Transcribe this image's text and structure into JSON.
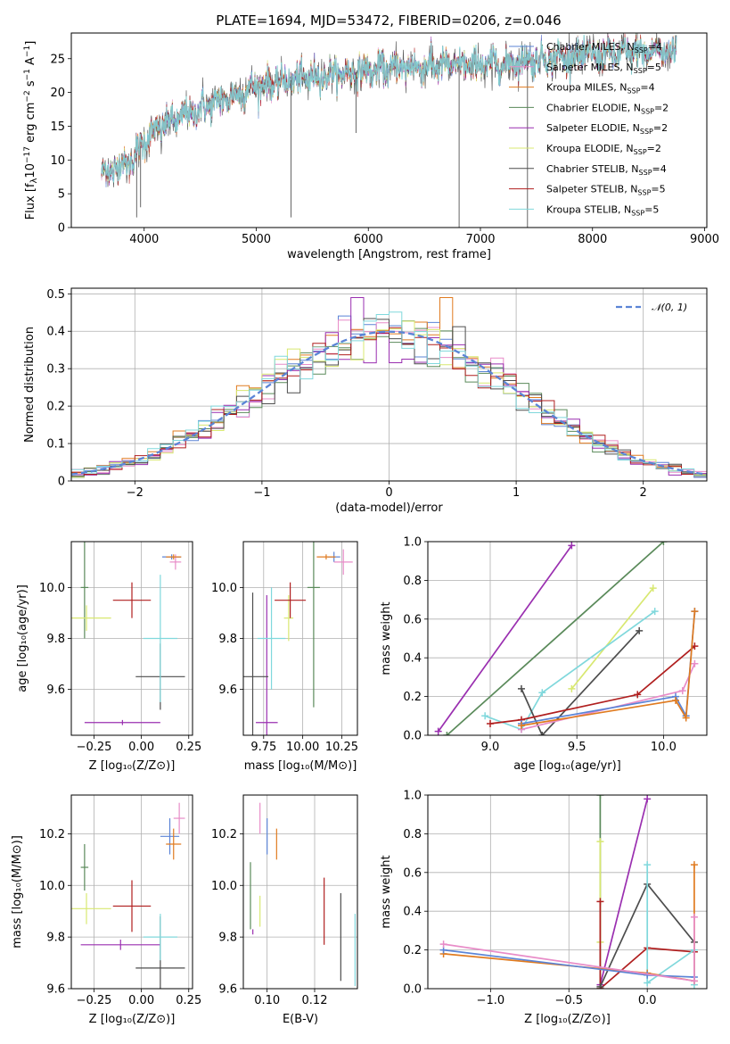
{
  "title": "PLATE=1694, MJD=53472, FIBERID=0206, z=0.046",
  "colors": {
    "Chabrier MILES": "#5b84d6",
    "Salpeter MILES": "#e88cc8",
    "Kroupa MILES": "#e07b20",
    "Chabrier ELODIE": "#5a8a5a",
    "Salpeter ELODIE": "#9a2fb0",
    "Kroupa ELODIE": "#d8e870",
    "Chabrier STELIB": "#4d4d4d",
    "Salpeter STELIB": "#b01f1f",
    "Kroupa STELIB": "#80d8dc"
  },
  "chart_data": [
    {
      "id": "spectrum",
      "type": "line",
      "title": "PLATE=1694, MJD=53472, FIBERID=0206, z=0.046",
      "xlabel": "wavelength [Angstrom, rest frame]",
      "ylabel": "Flux [f_λ10^-17 erg cm^-2 s^-1 A^-1]",
      "xlim": [
        3350,
        9020
      ],
      "ylim": [
        0,
        28.8
      ],
      "xticks": [
        4000,
        5000,
        6000,
        7000,
        8000,
        9000
      ],
      "yticks": [
        0,
        5,
        10,
        15,
        20,
        25
      ],
      "grid": false,
      "legend_position": "top-right",
      "data_range": [
        3620,
        8750
      ],
      "legend": [
        {
          "label": "Chabrier MILES, N_SSP=4",
          "color_key": "Chabrier MILES"
        },
        {
          "label": "Salpeter MILES, N_SSP=5",
          "color_key": "Salpeter MILES"
        },
        {
          "label": "Kroupa MILES, N_SSP=4",
          "color_key": "Kroupa MILES"
        },
        {
          "label": "Chabrier ELODIE, N_SSP=2",
          "color_key": "Chabrier ELODIE"
        },
        {
          "label": "Salpeter ELODIE, N_SSP=2",
          "color_key": "Salpeter ELODIE"
        },
        {
          "label": "Kroupa ELODIE, N_SSP=2",
          "color_key": "Kroupa ELODIE"
        },
        {
          "label": "Chabrier STELIB, N_SSP=4",
          "color_key": "Chabrier STELIB"
        },
        {
          "label": "Salpeter STELIB, N_SSP=5",
          "color_key": "Salpeter STELIB"
        },
        {
          "label": "Kroupa STELIB, N_SSP=5",
          "color_key": "Kroupa STELIB"
        }
      ],
      "continuum": [
        [
          3620,
          8
        ],
        [
          3900,
          10
        ],
        [
          4000,
          13
        ],
        [
          4200,
          15.5
        ],
        [
          4500,
          17.5
        ],
        [
          4800,
          19.5
        ],
        [
          5000,
          21
        ],
        [
          5300,
          21.8
        ],
        [
          5600,
          22.5
        ],
        [
          6000,
          23.2
        ],
        [
          6400,
          23.8
        ],
        [
          6800,
          24
        ],
        [
          7200,
          24.2
        ],
        [
          7500,
          25
        ],
        [
          8000,
          25.5
        ],
        [
          8500,
          26
        ],
        [
          8750,
          26.2
        ]
      ],
      "absorption_lines": [
        {
          "x": 3933,
          "y": 1.5
        },
        {
          "x": 3968,
          "y": 3.0
        },
        {
          "x": 5310,
          "y": 1.5
        },
        {
          "x": 5890,
          "y": 14.0
        },
        {
          "x": 6810,
          "y": 0
        },
        {
          "x": 7420,
          "y": 0
        }
      ]
    },
    {
      "id": "residual-histogram",
      "type": "line",
      "xlabel": "(data-model)/error",
      "ylabel": "Normed distribution",
      "xlim": [
        -2.5,
        2.5
      ],
      "ylim": [
        0,
        0.515
      ],
      "xticks": [
        -2,
        -1,
        0,
        1,
        2
      ],
      "yticks": [
        0,
        0.1,
        0.2,
        0.3,
        0.4,
        0.5
      ],
      "grid": true,
      "legend_position": "top-right",
      "legend": [
        {
          "label": "𝒩(0, 1)",
          "style": "dashed",
          "color_key": "Chabrier MILES"
        }
      ],
      "bin_width": 0.1,
      "note_peaks": {
        "Salpeter ELODIE": 0.49,
        "Kroupa MILES": 0.49
      }
    },
    {
      "id": "age-vs-Z",
      "type": "scatter",
      "xlabel": "Z [log10(Z/Z⊙)]",
      "ylabel": "age [log10(age/yr)]",
      "xlim": [
        -0.37,
        0.27
      ],
      "ylim": [
        9.42,
        10.18
      ],
      "xticks": [
        -0.25,
        0.0,
        0.25
      ],
      "yticks": [
        9.6,
        9.8,
        10.0
      ],
      "grid": true,
      "errorbars": [
        {
          "key": "Chabrier MILES",
          "x": 0.16,
          "y": 10.12,
          "xerr": 0.05,
          "yerr": 0.01
        },
        {
          "key": "Salpeter MILES",
          "x": 0.18,
          "y": 10.1,
          "xerr": 0.03,
          "yerr": 0.03
        },
        {
          "key": "Kroupa MILES",
          "x": 0.17,
          "y": 10.12,
          "xerr": 0.04,
          "yerr": 0.01
        },
        {
          "key": "Chabrier ELODIE",
          "x": -0.3,
          "y": 10.0,
          "xerr": 0.02,
          "yerr": 0.2
        },
        {
          "key": "Salpeter ELODIE",
          "x": -0.1,
          "y": 9.47,
          "xerr": 0.2,
          "yerr": 0.01
        },
        {
          "key": "Kroupa ELODIE",
          "x": -0.29,
          "y": 9.88,
          "xerr": 0.13,
          "yerr": 0.05
        },
        {
          "key": "Chabrier STELIB",
          "x": 0.1,
          "y": 9.65,
          "xerr": 0.13,
          "yerr": 0.13
        },
        {
          "key": "Salpeter STELIB",
          "x": -0.05,
          "y": 9.95,
          "xerr": 0.1,
          "yerr": 0.07
        },
        {
          "key": "Kroupa STELIB",
          "x": 0.1,
          "y": 9.8,
          "xerr": 0.09,
          "yerr": 0.25
        }
      ]
    },
    {
      "id": "age-vs-mass",
      "type": "scatter",
      "xlabel": "mass [log10(M/M⊙)]",
      "ylabel": "",
      "xlim": [
        9.62,
        10.35
      ],
      "ylim": [
        9.42,
        10.18
      ],
      "xticks": [
        9.75,
        10.0,
        10.25
      ],
      "yticks": [
        9.6,
        9.8,
        10.0
      ],
      "grid": true,
      "errorbars": [
        {
          "key": "Chabrier MILES",
          "x": 10.2,
          "y": 10.12,
          "xerr": 0.04,
          "yerr": 0.02
        },
        {
          "key": "Salpeter MILES",
          "x": 10.26,
          "y": 10.1,
          "xerr": 0.06,
          "yerr": 0.05
        },
        {
          "key": "Kroupa MILES",
          "x": 10.15,
          "y": 10.12,
          "xerr": 0.06,
          "yerr": 0.01
        },
        {
          "key": "Chabrier ELODIE",
          "x": 10.07,
          "y": 10.0,
          "xerr": 0.04,
          "yerr": 0.47
        },
        {
          "key": "Salpeter ELODIE",
          "x": 9.77,
          "y": 9.47,
          "xerr": 0.07,
          "yerr": 0.5
        },
        {
          "key": "Kroupa ELODIE",
          "x": 9.91,
          "y": 9.88,
          "xerr": 0.03,
          "yerr": 0.09
        },
        {
          "key": "Chabrier STELIB",
          "x": 9.68,
          "y": 9.65,
          "xerr": 0.1,
          "yerr": 0.33
        },
        {
          "key": "Salpeter STELIB",
          "x": 9.92,
          "y": 9.95,
          "xerr": 0.1,
          "yerr": 0.07
        },
        {
          "key": "Kroupa STELIB",
          "x": 9.8,
          "y": 9.8,
          "xerr": 0.09,
          "yerr": 0.2
        }
      ]
    },
    {
      "id": "massweight-vs-age",
      "type": "line",
      "xlabel": "age [log10(age/yr)]",
      "ylabel": "mass weight",
      "xlim": [
        8.64,
        10.25
      ],
      "ylim": [
        0,
        1.0
      ],
      "xticks": [
        9.0,
        9.5,
        10.0
      ],
      "yticks": [
        0.0,
        0.2,
        0.4,
        0.6,
        0.8,
        1.0
      ],
      "grid": true,
      "series": [
        {
          "key": "Salpeter ELODIE",
          "x": [
            8.7,
            9.47
          ],
          "y": [
            0.02,
            0.98
          ]
        },
        {
          "key": "Chabrier ELODIE",
          "x": [
            8.75,
            10.0
          ],
          "y": [
            0.0,
            1.0
          ]
        },
        {
          "key": "Kroupa ELODIE",
          "x": [
            9.47,
            9.94
          ],
          "y": [
            0.24,
            0.76
          ]
        },
        {
          "key": "Kroupa STELIB",
          "x": [
            8.97,
            9.18,
            9.3,
            9.95
          ],
          "y": [
            0.1,
            0.03,
            0.22,
            0.64
          ]
        },
        {
          "key": "Chabrier STELIB",
          "x": [
            9.18,
            9.3,
            9.86
          ],
          "y": [
            0.24,
            0.0,
            0.54
          ]
        },
        {
          "key": "Salpeter STELIB",
          "x": [
            9.0,
            9.18,
            9.85,
            10.18
          ],
          "y": [
            0.06,
            0.08,
            0.21,
            0.46
          ]
        },
        {
          "key": "Salpeter MILES",
          "x": [
            9.18,
            10.11,
            10.18
          ],
          "y": [
            0.03,
            0.23,
            0.37
          ]
        },
        {
          "key": "Chabrier MILES",
          "x": [
            9.18,
            10.07,
            10.13,
            10.18
          ],
          "y": [
            0.06,
            0.2,
            0.1,
            0.64
          ]
        },
        {
          "key": "Kroupa MILES",
          "x": [
            9.18,
            10.07,
            10.13,
            10.18
          ],
          "y": [
            0.05,
            0.18,
            0.09,
            0.64
          ]
        }
      ]
    },
    {
      "id": "mass-vs-Z",
      "type": "scatter",
      "xlabel": "Z [log10(Z/Z⊙)]",
      "ylabel": "mass [log10(M/M⊙)]",
      "xlim": [
        -0.37,
        0.27
      ],
      "ylim": [
        9.6,
        10.35
      ],
      "xticks": [
        -0.25,
        0.0,
        0.25
      ],
      "yticks": [
        9.6,
        9.8,
        10.0,
        10.2
      ],
      "grid": true,
      "errorbars": [
        {
          "key": "Chabrier MILES",
          "x": 0.15,
          "y": 10.19,
          "xerr": 0.05,
          "yerr": 0.07
        },
        {
          "key": "Salpeter MILES",
          "x": 0.2,
          "y": 10.26,
          "xerr": 0.03,
          "yerr": 0.06
        },
        {
          "key": "Kroupa MILES",
          "x": 0.17,
          "y": 10.16,
          "xerr": 0.04,
          "yerr": 0.06
        },
        {
          "key": "Chabrier ELODIE",
          "x": -0.3,
          "y": 10.07,
          "xerr": 0.02,
          "yerr": 0.09
        },
        {
          "key": "Salpeter ELODIE",
          "x": -0.11,
          "y": 9.77,
          "xerr": 0.21,
          "yerr": 0.02
        },
        {
          "key": "Kroupa ELODIE",
          "x": -0.29,
          "y": 9.91,
          "xerr": 0.13,
          "yerr": 0.06
        },
        {
          "key": "Chabrier STELIB",
          "x": 0.1,
          "y": 9.68,
          "xerr": 0.13,
          "yerr": 0.2
        },
        {
          "key": "Salpeter STELIB",
          "x": -0.05,
          "y": 9.92,
          "xerr": 0.1,
          "yerr": 0.1
        },
        {
          "key": "Kroupa STELIB",
          "x": 0.1,
          "y": 9.8,
          "xerr": 0.09,
          "yerr": 0.09
        }
      ]
    },
    {
      "id": "mass-vs-EBV",
      "type": "scatter",
      "xlabel": "E(B-V)",
      "ylabel": "",
      "xlim": [
        0.09,
        0.138
      ],
      "ylim": [
        9.6,
        10.35
      ],
      "xticks": [
        0.1,
        0.12
      ],
      "yticks": [
        9.6,
        9.8,
        10.0,
        10.2
      ],
      "grid": true,
      "errorbars": [
        {
          "key": "Chabrier MILES",
          "x": 0.1,
          "y": 10.19,
          "xerr": 0,
          "yerr": 0.07
        },
        {
          "key": "Salpeter MILES",
          "x": 0.097,
          "y": 10.26,
          "xerr": 0,
          "yerr": 0.06
        },
        {
          "key": "Kroupa MILES",
          "x": 0.104,
          "y": 10.16,
          "xerr": 0,
          "yerr": 0.06
        },
        {
          "key": "Chabrier ELODIE",
          "x": 0.093,
          "y": 9.96,
          "xerr": 0,
          "yerr": 0.13
        },
        {
          "key": "Salpeter ELODIE",
          "x": 0.094,
          "y": 9.82,
          "xerr": 0,
          "yerr": 0.01
        },
        {
          "key": "Kroupa ELODIE",
          "x": 0.097,
          "y": 9.9,
          "xerr": 0,
          "yerr": 0.06
        },
        {
          "key": "Chabrier STELIB",
          "x": 0.131,
          "y": 9.8,
          "xerr": 0,
          "yerr": 0.17
        },
        {
          "key": "Salpeter STELIB",
          "x": 0.124,
          "y": 9.9,
          "xerr": 0,
          "yerr": 0.13
        },
        {
          "key": "Kroupa STELIB",
          "x": 0.137,
          "y": 9.75,
          "xerr": 0,
          "yerr": 0.14
        }
      ]
    },
    {
      "id": "massweight-vs-Z",
      "type": "line",
      "xlabel": "Z [log10(Z/Z⊙)]",
      "ylabel": "mass weight",
      "xlim": [
        -1.4,
        0.38
      ],
      "ylim": [
        0,
        1.0
      ],
      "xticks": [
        -1.0,
        -0.5,
        0.0
      ],
      "xticklabels": [
        "−1.0",
        "−0.5",
        "0.0"
      ],
      "yticks": [
        0.0,
        0.2,
        0.4,
        0.6,
        0.8,
        1.0
      ],
      "grid": true,
      "series": [
        {
          "key": "Chabrier ELODIE",
          "x": [
            -0.3,
            -0.3
          ],
          "y": [
            0.0,
            1.0
          ]
        },
        {
          "key": "Kroupa ELODIE",
          "x": [
            -0.3,
            -0.3
          ],
          "y": [
            0.24,
            0.76
          ]
        },
        {
          "key": "Salpeter ELODIE",
          "x": [
            -0.3,
            0.0
          ],
          "y": [
            0.02,
            0.98
          ]
        },
        {
          "key": "Salpeter STELIB",
          "x": [
            -0.3,
            -0.3,
            0.0,
            0.3
          ],
          "y": [
            0.45,
            0.0,
            0.21,
            0.19
          ]
        },
        {
          "key": "Chabrier STELIB",
          "x": [
            -0.3,
            0.0,
            0.3
          ],
          "y": [
            0.01,
            0.54,
            0.24
          ]
        },
        {
          "key": "Kroupa STELIB",
          "x": [
            0.0,
            0.0,
            0.3,
            0.3
          ],
          "y": [
            0.64,
            0.03,
            0.2,
            0.02
          ]
        },
        {
          "key": "Kroupa MILES",
          "x": [
            -1.3,
            0.0,
            0.3,
            0.3
          ],
          "y": [
            0.18,
            0.08,
            0.04,
            0.64
          ]
        },
        {
          "key": "Chabrier MILES",
          "x": [
            -1.3,
            0.0,
            0.3
          ],
          "y": [
            0.2,
            0.07,
            0.06
          ]
        },
        {
          "key": "Salpeter MILES",
          "x": [
            -1.3,
            0.3,
            0.3
          ],
          "y": [
            0.23,
            0.04,
            0.37
          ]
        }
      ]
    }
  ]
}
